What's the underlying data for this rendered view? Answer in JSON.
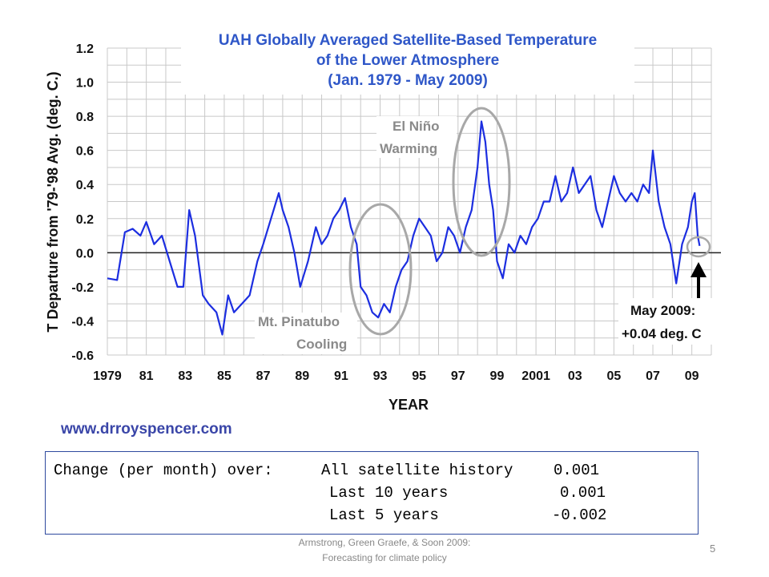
{
  "chart_data": {
    "type": "line",
    "title_lines": [
      "UAH Globally Averaged Satellite-Based Temperature",
      "of the Lower Atmosphere",
      "(Jan. 1979  -  May 2009)"
    ],
    "xlabel": "YEAR",
    "ylabel": "T Departure from '79-'98 Avg. (deg. C.)",
    "ylim": [
      -0.6,
      1.2
    ],
    "xlim": [
      1979.0,
      2010.0
    ],
    "yticks": [
      "1.2",
      "1.0",
      "0.8",
      "0.6",
      "0.4",
      "0.2",
      "0.0",
      "-0.2",
      "-0.4",
      "-0.6"
    ],
    "ytick_values": [
      1.2,
      1.0,
      0.8,
      0.6,
      0.4,
      0.2,
      0.0,
      -0.2,
      -0.4,
      -0.6
    ],
    "xticks": [
      "1979",
      "81",
      "83",
      "85",
      "87",
      "89",
      "91",
      "93",
      "95",
      "97",
      "99",
      "2001",
      "03",
      "05",
      "07",
      "09"
    ],
    "xtick_values": [
      1979,
      1981,
      1983,
      1985,
      1987,
      1989,
      1991,
      1993,
      1995,
      1997,
      1999,
      2001,
      2003,
      2005,
      2007,
      2009
    ],
    "grid": true,
    "series_color": "#1c2ee0",
    "series": [
      {
        "x": [
          1979.0,
          1979.5,
          1979.9,
          1980.3,
          1980.7,
          1981.0,
          1981.4,
          1981.8,
          1982.2,
          1982.6,
          1982.9,
          1983.2,
          1983.5,
          1983.9,
          1984.2,
          1984.6,
          1984.9,
          1985.2,
          1985.5,
          1985.9,
          1986.3,
          1986.7,
          1987.0,
          1987.4,
          1987.8,
          1988.0,
          1988.3,
          1988.6,
          1988.9,
          1989.3,
          1989.7,
          1990.0,
          1990.3,
          1990.6,
          1990.9,
          1991.2,
          1991.5,
          1991.8,
          1992.0,
          1992.3,
          1992.6,
          1992.9,
          1993.2,
          1993.5,
          1993.8,
          1994.1,
          1994.4,
          1994.7,
          1995.0,
          1995.3,
          1995.6,
          1995.9,
          1996.2,
          1996.5,
          1996.8,
          1997.1,
          1997.4,
          1997.7,
          1998.0,
          1998.2,
          1998.4,
          1998.6,
          1998.8,
          1999.0,
          1999.3,
          1999.6,
          1999.9,
          2000.2,
          2000.5,
          2000.8,
          2001.1,
          2001.4,
          2001.7,
          2002.0,
          2002.3,
          2002.6,
          2002.9,
          2003.2,
          2003.5,
          2003.8,
          2004.1,
          2004.4,
          2004.7,
          2005.0,
          2005.3,
          2005.6,
          2005.9,
          2006.2,
          2006.5,
          2006.8,
          2007.0,
          2007.3,
          2007.6,
          2007.9,
          2008.2,
          2008.5,
          2008.8,
          2009.0,
          2009.15,
          2009.3,
          2009.4
        ],
        "values": [
          -0.15,
          -0.16,
          0.12,
          0.14,
          0.1,
          0.18,
          0.05,
          0.1,
          -0.05,
          -0.2,
          -0.2,
          0.25,
          0.1,
          -0.25,
          -0.3,
          -0.35,
          -0.48,
          -0.25,
          -0.35,
          -0.3,
          -0.25,
          -0.05,
          0.05,
          0.2,
          0.35,
          0.25,
          0.15,
          0.0,
          -0.2,
          -0.05,
          0.15,
          0.05,
          0.1,
          0.2,
          0.25,
          0.32,
          0.15,
          0.05,
          -0.2,
          -0.25,
          -0.35,
          -0.38,
          -0.3,
          -0.35,
          -0.2,
          -0.1,
          -0.05,
          0.1,
          0.2,
          0.15,
          0.1,
          -0.05,
          0.0,
          0.15,
          0.1,
          0.0,
          0.15,
          0.25,
          0.5,
          0.77,
          0.65,
          0.4,
          0.25,
          -0.05,
          -0.15,
          0.05,
          0.0,
          0.1,
          0.05,
          0.15,
          0.2,
          0.3,
          0.3,
          0.45,
          0.3,
          0.35,
          0.5,
          0.35,
          0.4,
          0.45,
          0.25,
          0.15,
          0.3,
          0.45,
          0.35,
          0.3,
          0.35,
          0.3,
          0.4,
          0.35,
          0.6,
          0.3,
          0.15,
          0.05,
          -0.18,
          0.05,
          0.15,
          0.3,
          0.35,
          0.1,
          0.04
        ]
      }
    ],
    "annotations": {
      "el_nino": [
        "El Niño",
        "Warming"
      ],
      "pinatubo": [
        "Mt. Pinatubo",
        "Cooling"
      ],
      "may2009": [
        "May 2009:",
        "+0.04 deg. C"
      ]
    }
  },
  "website": "www.drroyspencer.com",
  "info_box": {
    "col1": "Change (per month) over:",
    "rows": [
      {
        "label": "All satellite history",
        "value": "0.001"
      },
      {
        "label": "Last 10 years",
        "value": "0.001"
      },
      {
        "label": "Last 5 years",
        "value": "-0.002"
      }
    ]
  },
  "footer": {
    "line1": "Armstrong, Green Graefe, & Soon 2009:",
    "line2": "Forecasting for climate policy",
    "page_number": "5"
  }
}
